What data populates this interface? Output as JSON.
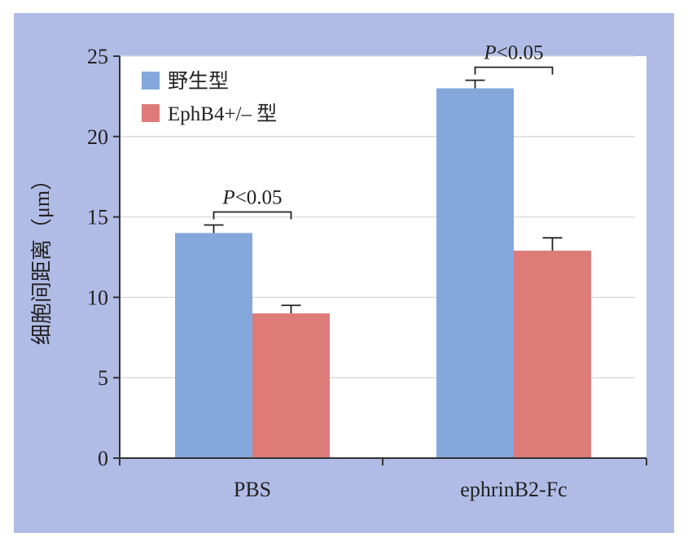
{
  "chart_data": {
    "type": "bar",
    "categories": [
      "PBS",
      "ephrinB2-Fc"
    ],
    "series": [
      {
        "name": "野生型",
        "values": [
          14.0,
          23.0
        ],
        "errors": [
          0.5,
          0.5
        ],
        "color": "#84a8dc"
      },
      {
        "name": "EphB4+/– 型",
        "values": [
          9.0,
          12.9
        ],
        "errors": [
          0.5,
          0.8
        ],
        "color": "#dc7b78"
      }
    ],
    "title": "",
    "xlabel": "",
    "ylabel": "细胞间距离（μm）",
    "ylim": [
      0,
      25
    ],
    "yticks": [
      0,
      5,
      10,
      15,
      20,
      25
    ],
    "grid": true,
    "legend": "top-left",
    "annotations": [
      {
        "category": "PBS",
        "text_prefix": "P",
        "text_rest": "<0.05"
      },
      {
        "category": "ephrinB2-Fc",
        "text_prefix": "P",
        "text_rest": "<0.05"
      }
    ],
    "colors": {
      "frame": "#b1bce6",
      "plot_bg": "#ffffff",
      "grid": "#d9d9d9",
      "axis": "#333333"
    }
  }
}
